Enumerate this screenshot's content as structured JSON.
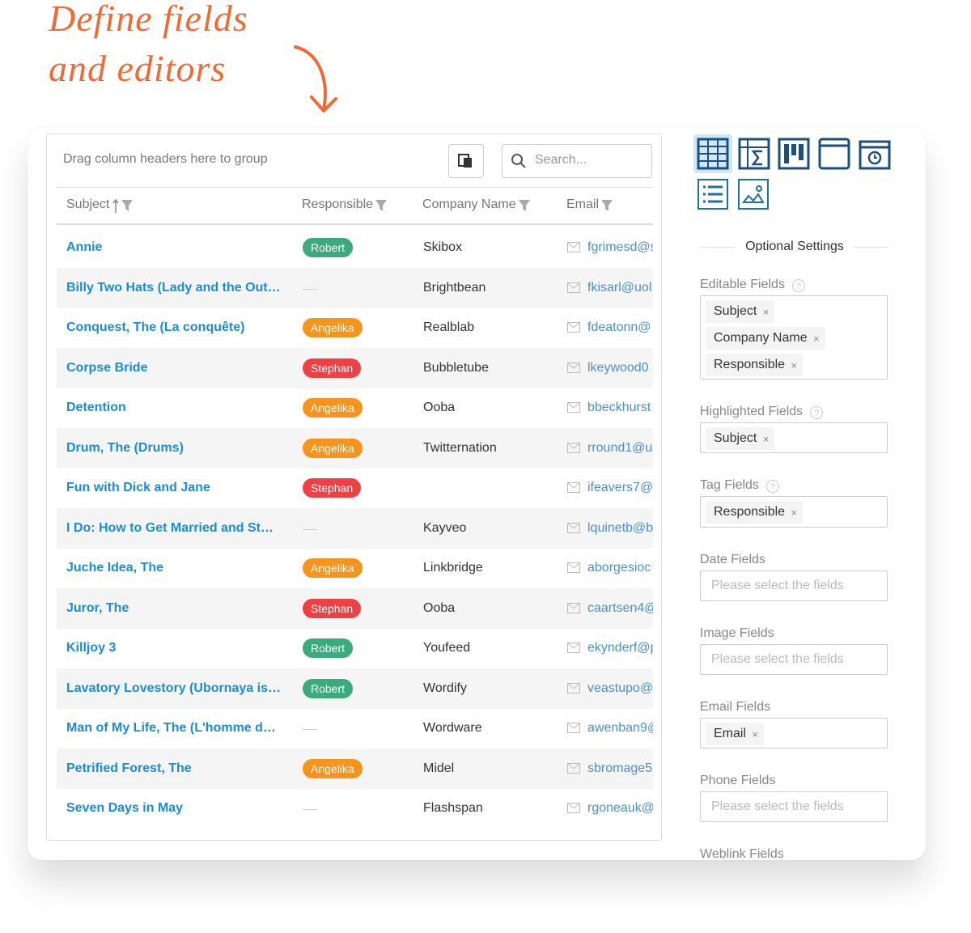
{
  "annotation": {
    "lines": [
      "Define fields",
      "and editors"
    ]
  },
  "toolbar": {
    "group_hint": "Drag column headers here to group",
    "search_placeholder": "Search..."
  },
  "table": {
    "columns": [
      "Subject",
      "Responsible",
      "Company Name",
      "Email"
    ],
    "rows": [
      [
        "Annie",
        "Robert",
        "Skibox",
        "fgrimesd@s"
      ],
      [
        "Billy Two Hats (Lady and the Out…",
        null,
        "Brightbean",
        "fkisarl@uol."
      ],
      [
        "Conquest, The (La conquête)",
        "Angelika",
        "Realblab",
        "fdeatonn@"
      ],
      [
        "Corpse Bride",
        "Stephan",
        "Bubbletube",
        "lkeywood0"
      ],
      [
        "Detention",
        "Angelika",
        "Ooba",
        "bbeckhurst"
      ],
      [
        "Drum, The (Drums)",
        "Angelika",
        "Twitternation",
        "rround1@u"
      ],
      [
        "Fun with Dick and Jane",
        "Stephan",
        null,
        "ifeavers7@"
      ],
      [
        "I Do: How to Get Married and St…",
        null,
        "Kayveo",
        "lquinetb@b"
      ],
      [
        "Juche Idea, The",
        "Angelika",
        "Linkbridge",
        "aborgesioc"
      ],
      [
        "Juror, The",
        "Stephan",
        "Ooba",
        "caartsen4@"
      ],
      [
        "Killjoy 3",
        "Robert",
        "Youfeed",
        "ekynderf@p"
      ],
      [
        "Lavatory Lovestory (Ubornaya is…",
        "Robert",
        "Wordify",
        "veastupo@"
      ],
      [
        "Man of My Life, The (L'homme d…",
        null,
        "Wordware",
        "awenban9@"
      ],
      [
        "Petrified Forest, The",
        "Angelika",
        "Midel",
        "sbromage5"
      ],
      [
        "Seven Days in May",
        null,
        "Flashspan",
        "rgoneauk@"
      ]
    ]
  },
  "responsible_colors": {
    "Robert": "#3daa7d",
    "Angelika": "#f7941d",
    "Stephan": "#ef4044"
  },
  "settings": {
    "title": "Optional Settings",
    "fields": [
      {
        "label": "Editable Fields",
        "help": true,
        "tags": [
          "Subject",
          "Company Name",
          "Responsible"
        ]
      },
      {
        "label": "Highlighted Fields",
        "help": true,
        "tags": [
          "Subject"
        ]
      },
      {
        "label": "Tag Fields",
        "help": true,
        "tags": [
          "Responsible"
        ]
      },
      {
        "label": "Date Fields",
        "placeholder": "Please select the fields"
      },
      {
        "label": "Image Fields",
        "placeholder": "Please select the fields"
      },
      {
        "label": "Email Fields",
        "tags": [
          "Email"
        ]
      },
      {
        "label": "Phone Fields",
        "placeholder": "Please select the fields"
      },
      {
        "label": "Weblink Fields"
      }
    ]
  }
}
